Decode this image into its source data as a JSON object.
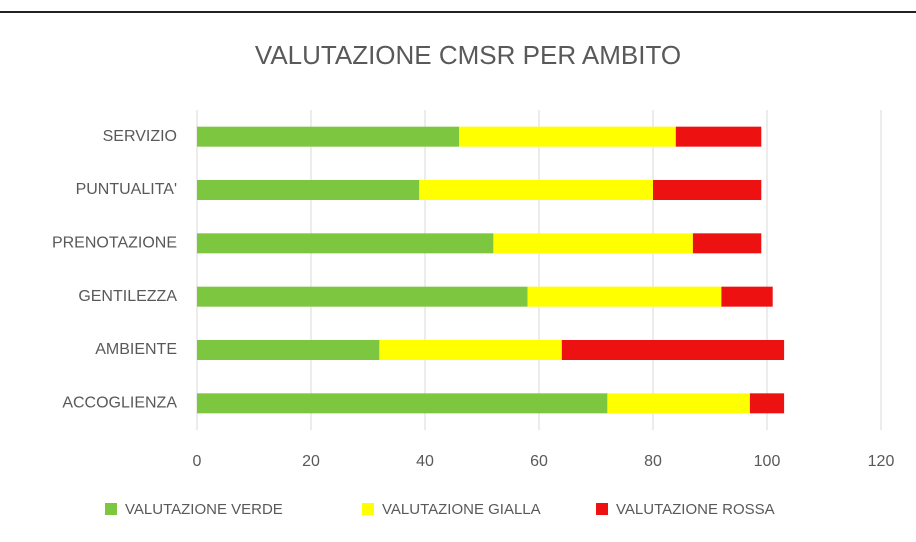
{
  "chart_data": {
    "type": "stacked-bar-horizontal",
    "title": "VALUTAZIONE CMSR PER AMBITO",
    "categories": [
      "SERVIZIO",
      "PUNTUALITA'",
      "PRENOTAZIONE",
      "GENTILEZZA",
      "AMBIENTE",
      "ACCOGLIENZA"
    ],
    "series": [
      {
        "name": "VALUTAZIONE VERDE",
        "color": "#7dc63f",
        "values": [
          46,
          39,
          52,
          58,
          32,
          72
        ]
      },
      {
        "name": "VALUTAZIONE GIALLA",
        "color": "#ffff00",
        "values": [
          38,
          41,
          35,
          34,
          32,
          25
        ]
      },
      {
        "name": "VALUTAZIONE ROSSA",
        "color": "#ee1111",
        "values": [
          15,
          19,
          12,
          9,
          39,
          6
        ]
      }
    ],
    "xlim": [
      0,
      120
    ],
    "xticks": [
      0,
      20,
      40,
      60,
      80,
      100,
      120
    ],
    "grid": true,
    "legend": "bottom"
  }
}
